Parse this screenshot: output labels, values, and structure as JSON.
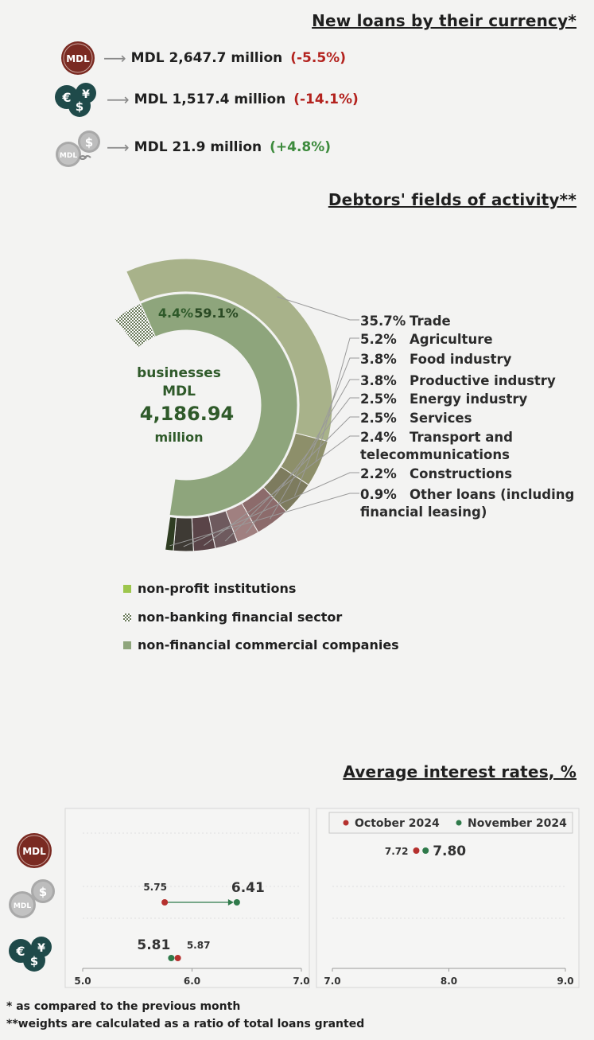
{
  "currency": {
    "title": "New loans by their currency*",
    "rows": [
      {
        "icon": "mdl-coin-icon",
        "amount": "MDL 2,647.7 million",
        "change": "(-5.5%)",
        "trend": "neg"
      },
      {
        "icon": "foreign-currency-icon",
        "amount": "MDL 1,517.4 million",
        "change": "(-14.1%)",
        "trend": "neg"
      },
      {
        "icon": "indexed-currency-icon",
        "amount": "MDL 21.9 million",
        "change": "(+4.8%)",
        "trend": "pos"
      }
    ],
    "icon_labels": {
      "mdl": "MDL",
      "euro": "€",
      "yen": "¥",
      "dollar": "$"
    }
  },
  "activity": {
    "title": "Debtors' fields of activity**",
    "center": {
      "line1": "businesses",
      "line2": "MDL",
      "line3": "4,186.94",
      "line4": "million"
    }
  },
  "interest": {
    "title": "Average interest rates, %"
  },
  "footnotes": {
    "one": "* as compared to the previous month",
    "two": "**weights are calculated as a ratio of total loans granted"
  },
  "colors": {
    "neg": "#b3221e",
    "pos": "#3c8a3c",
    "october": "#b5312e",
    "november": "#2f7a4a",
    "outer": "#a8b28a",
    "inner": "#8ea57c"
  },
  "chart_data": [
    {
      "type": "pie",
      "subtype": "nested-donut",
      "inner_ring": {
        "labels": [
          "non-profit institutions",
          "non-banking financial sector",
          "non-financial commercial companies"
        ],
        "shown_values": [
          null,
          "4.4%",
          "59.1%"
        ]
      },
      "outer_ring": {
        "categories": [
          "Trade",
          "Agriculture",
          "Food industry",
          "Productive industry",
          "Energy industry",
          "Services",
          "Transport and telecommunications",
          "Constructions",
          "Other loans (including financial leasing)"
        ],
        "values": [
          35.7,
          5.2,
          3.8,
          3.8,
          2.5,
          2.5,
          2.4,
          2.2,
          0.9
        ],
        "value_labels": [
          "35.7%",
          "5.2%",
          "3.8%",
          "3.8%",
          "2.5%",
          "2.5%",
          "2.4%",
          "2.2%",
          "0.9%"
        ],
        "colors": [
          "#a8b28a",
          "#8d8f6a",
          "#7d7b5e",
          "#8c6b6b",
          "#a08080",
          "#6e5a5e",
          "#5a4448",
          "#3e3a34",
          "#2f3d22"
        ]
      }
    },
    {
      "type": "scatter",
      "subtype": "dumbbell",
      "legend": [
        "October 2024",
        "November 2024"
      ],
      "legend_position": "top",
      "panels": [
        {
          "xlim": [
            5.0,
            7.0
          ],
          "xticks": [
            "5.0",
            "6.0",
            "7.0"
          ],
          "rows": [
            {
              "currency": "indexed",
              "october": 5.75,
              "november": 6.41,
              "october_label": "5.75",
              "november_label": "6.41"
            },
            {
              "currency": "foreign",
              "october": 5.87,
              "november": 5.81,
              "october_label": "5.87",
              "november_label": "5.81"
            }
          ]
        },
        {
          "xlim": [
            7.0,
            9.0
          ],
          "xticks": [
            "7.0",
            "8.0",
            "9.0"
          ],
          "rows": [
            {
              "currency": "MDL",
              "october": 7.72,
              "november": 7.8,
              "october_label": "7.72",
              "november_label": "7.80"
            }
          ]
        }
      ]
    }
  ]
}
